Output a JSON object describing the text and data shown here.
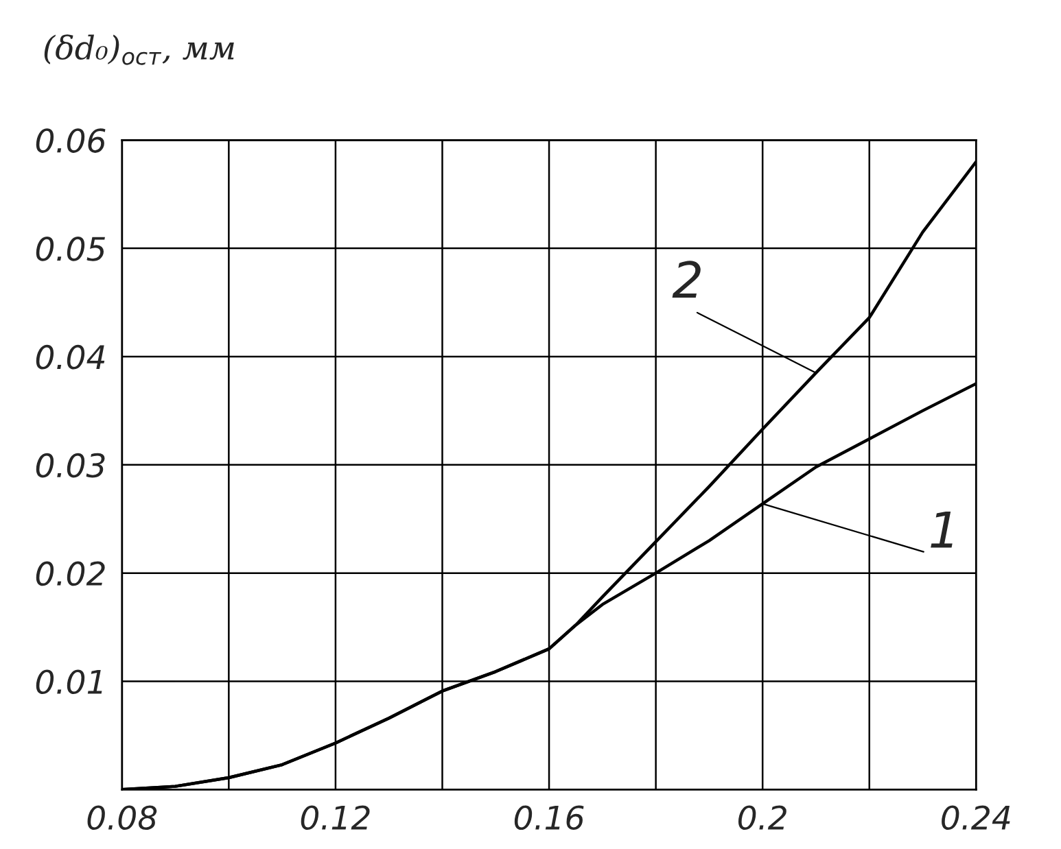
{
  "chart_data": {
    "type": "line",
    "ylabel": "(δd₀)$_{ост}$, мм",
    "x": [
      0.08,
      0.09,
      0.1,
      0.11,
      0.12,
      0.13,
      0.14,
      0.15,
      0.16,
      0.165,
      0.17,
      0.18,
      0.19,
      0.2,
      0.21,
      0.22,
      0.23,
      0.24
    ],
    "series": [
      {
        "color": "#000000",
        "values": [
          0,
          0.0003,
          0.0011,
          0.0023,
          0.0043,
          0.0066,
          0.0091,
          0.0109,
          0.013,
          0.0152,
          0.0171,
          0.02,
          0.023,
          0.0264,
          0.0298,
          0.0324,
          0.035,
          0.0375
        ]
      },
      {
        "color": "#000000",
        "values": [
          0,
          0.0003,
          0.0011,
          0.0023,
          0.0043,
          0.0066,
          0.0091,
          0.0109,
          0.013,
          0.0152,
          0.0178,
          0.0229,
          0.028,
          0.0333,
          0.0385,
          0.0436,
          0.0515,
          0.058
        ]
      }
    ],
    "annotations": [
      {
        "text": "1",
        "x": 0.2,
        "y": 0.0264
      },
      {
        "text": "2",
        "x": 0.21,
        "y": 0.0385
      }
    ],
    "xlim": [
      0.08,
      0.24
    ],
    "ylim": [
      0,
      0.06
    ],
    "xticks": [
      0.08,
      {
        "value": 0.1,
        "label": null
      },
      0.12,
      {
        "value": 0.14,
        "label": null
      },
      0.16,
      {
        "value": 0.18,
        "label": null
      },
      {
        "value": 0.2,
        "label": "0.2"
      },
      {
        "value": 0.22,
        "label": null
      },
      0.24
    ],
    "yticks": [
      {
        "value": 0,
        "label": null
      },
      0.01,
      0.02,
      0.03,
      0.04,
      0.05,
      0.06
    ],
    "grid": true,
    "marker": "none",
    "line_style": "solid"
  }
}
